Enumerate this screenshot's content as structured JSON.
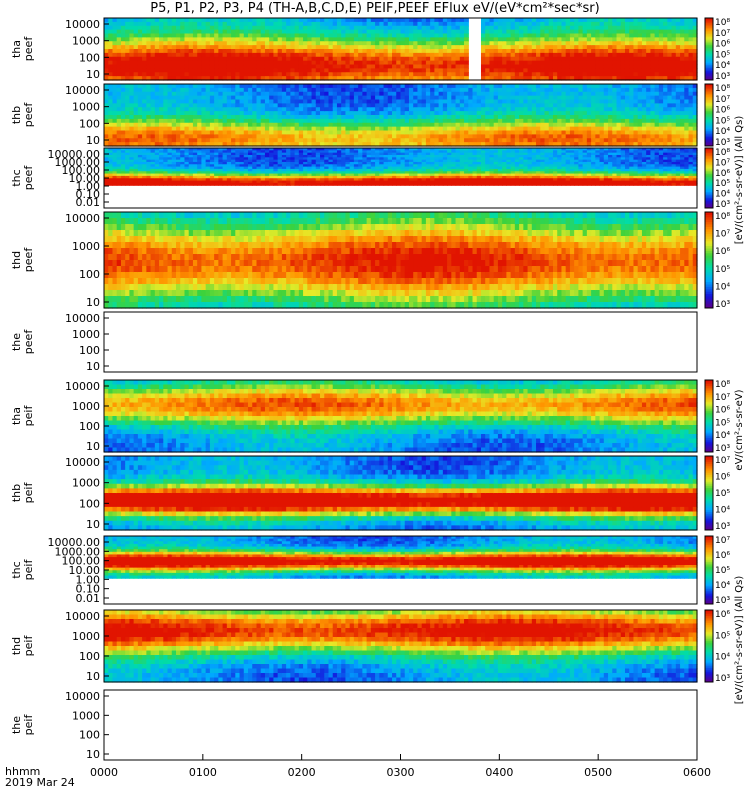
{
  "chart_data": {
    "type": "heatmap",
    "title": "P5, P1, P2, P3, P4 (TH-A,B,C,D,E) PEIF,PEEF EFlux eV/(eV*cm²*sec*sr)",
    "x_axis": {
      "ticks": [
        "0000",
        "0100",
        "0200",
        "0300",
        "0400",
        "0500",
        "0600"
      ],
      "unit_label": "hhmm",
      "date_label": "2019 Mar 24",
      "range": [
        "00:00",
        "06:00"
      ]
    },
    "colorbar_labels": [
      "[eV/(cm²-s-sr-eV)] (All Qs)",
      "eV/(cm²-s-sr-eV)",
      "[eV/(cm²-s-sr-eV)] (All Qs)"
    ],
    "panels": [
      {
        "probe": "tha",
        "product": "peef",
        "yticks": [
          "10",
          "100",
          "1000",
          "10000"
        ],
        "cbar_ticks": [
          "10³",
          "10⁴",
          "10⁵",
          "10⁶",
          "10⁷",
          "10⁸"
        ],
        "band_center_log": 1.9,
        "band_width": 1.6,
        "peak": 0.78,
        "data_gap": [
          "03:39",
          "03:48"
        ]
      },
      {
        "probe": "thb",
        "product": "peef",
        "yticks": [
          "10",
          "100",
          "1000",
          "10000"
        ],
        "cbar_ticks": [
          "10³",
          "10⁴",
          "10⁵",
          "10⁶",
          "10⁷",
          "10⁸"
        ],
        "band_center_log": 1.5,
        "band_width": 1.1,
        "peak": 0.58
      },
      {
        "probe": "thc",
        "product": "peef",
        "yticks": [
          "0.01",
          "0.10",
          "1.00",
          "10.00",
          "100.00",
          "1000.00",
          "10000.00"
        ],
        "cbar_ticks": [
          "10³",
          "10⁴",
          "10⁵",
          "10⁶",
          "10⁷",
          "10⁸"
        ],
        "band_center_log": 1.3,
        "band_width": 0.9,
        "peak": 0.85
      },
      {
        "probe": "thd",
        "product": "peef",
        "yticks": [
          "10",
          "100",
          "1000",
          "10000"
        ],
        "cbar_ticks": [
          "10³",
          "10⁴",
          "10⁵",
          "10⁶",
          "10⁷",
          "10⁸"
        ],
        "band_center_log": 2.8,
        "band_width": 1.5,
        "peak": 0.7
      },
      {
        "probe": "the",
        "product": "peef",
        "yticks": [
          "10",
          "100",
          "1000",
          "10000"
        ],
        "cbar_ticks": [],
        "empty": true
      },
      {
        "probe": "tha",
        "product": "peif",
        "yticks": [
          "10",
          "100",
          "1000",
          "10000"
        ],
        "cbar_ticks": [
          "10³",
          "10⁴",
          "10⁵",
          "10⁶",
          "10⁷",
          "10⁸"
        ],
        "band_center_log": 3.4,
        "band_width": 1.0,
        "peak": 0.6
      },
      {
        "probe": "thb",
        "product": "peif",
        "yticks": [
          "10",
          "100",
          "1000",
          "10000"
        ],
        "cbar_ticks": [
          "10³",
          "10⁴",
          "10⁵",
          "10⁶",
          "10⁷"
        ],
        "band_center_log": 2.5,
        "band_width": 0.7,
        "peak": 0.9
      },
      {
        "probe": "thc",
        "product": "peif",
        "yticks": [
          "0.01",
          "0.10",
          "1.00",
          "10.00",
          "100.00",
          "1000.00",
          "10000.00"
        ],
        "cbar_ticks": [
          "10³",
          "10⁴",
          "10⁵",
          "10⁶",
          "10⁷"
        ],
        "band_center_log": 2.5,
        "band_width": 0.8,
        "peak": 0.85
      },
      {
        "probe": "thd",
        "product": "peif",
        "yticks": [
          "10",
          "100",
          "1000",
          "10000"
        ],
        "cbar_ticks": [
          "10³",
          "10⁴",
          "10⁵",
          "10⁶"
        ],
        "band_center_log": 3.6,
        "band_width": 1.1,
        "peak": 0.75
      },
      {
        "probe": "the",
        "product": "peif",
        "yticks": [
          "10",
          "100",
          "1000",
          "10000"
        ],
        "cbar_ticks": [],
        "empty": true
      }
    ]
  }
}
